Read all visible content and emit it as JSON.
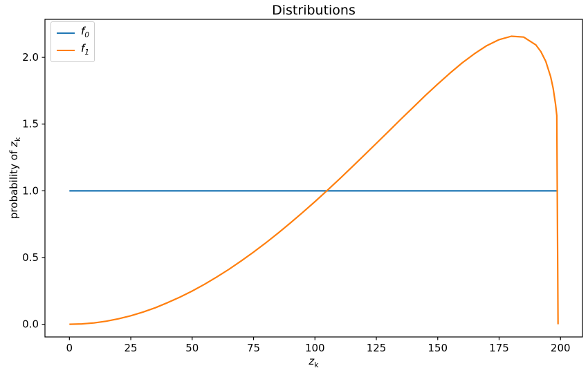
{
  "chart_data": {
    "type": "line",
    "title": "Distributions",
    "xlabel": "z_k",
    "ylabel": "probability of z_k",
    "ylabel_prefix": "probability of ",
    "var_base": "z",
    "var_sub": "k",
    "grid": false,
    "background": "#ffffff",
    "legend_position": "upper left",
    "xlim": [
      -9.95,
      208.95
    ],
    "ylim": [
      -0.095,
      2.285
    ],
    "x_ticks": [
      0,
      25,
      50,
      75,
      100,
      125,
      150,
      175,
      200
    ],
    "x_tick_labels": [
      "0",
      "25",
      "50",
      "75",
      "100",
      "125",
      "150",
      "175",
      "200"
    ],
    "y_ticks": [
      0.0,
      0.5,
      1.0,
      1.5,
      2.0
    ],
    "y_tick_labels": [
      "0.0",
      "0.5",
      "1.0",
      "1.5",
      "2.0"
    ],
    "series": [
      {
        "name": "f0",
        "label": "f_0",
        "label_base": "f",
        "label_sub": "0",
        "color": "#1f77b4",
        "x": [
          0,
          199
        ],
        "y": [
          1.0,
          1.0
        ]
      },
      {
        "name": "f1",
        "label": "f_1",
        "label_base": "f",
        "label_sub": "1",
        "color": "#ff7f0e",
        "x": [
          0,
          5,
          10,
          15,
          20,
          25,
          30,
          35,
          40,
          45,
          50,
          55,
          60,
          65,
          70,
          75,
          80,
          85,
          90,
          95,
          100,
          105,
          110,
          115,
          120,
          125,
          130,
          135,
          140,
          145,
          150,
          155,
          160,
          165,
          170,
          175,
          180,
          185,
          190,
          192,
          194,
          196,
          197,
          198,
          198.5,
          199
        ],
        "y": [
          0,
          0.003,
          0.01,
          0.023,
          0.041,
          0.064,
          0.092,
          0.124,
          0.162,
          0.203,
          0.249,
          0.299,
          0.354,
          0.412,
          0.475,
          0.541,
          0.61,
          0.683,
          0.759,
          0.838,
          0.919,
          1.003,
          1.089,
          1.177,
          1.266,
          1.356,
          1.446,
          1.537,
          1.626,
          1.715,
          1.8,
          1.882,
          1.959,
          2.028,
          2.088,
          2.133,
          2.158,
          2.152,
          2.093,
          2.044,
          1.971,
          1.855,
          1.769,
          1.648,
          1.564,
          0.0
        ]
      }
    ]
  }
}
